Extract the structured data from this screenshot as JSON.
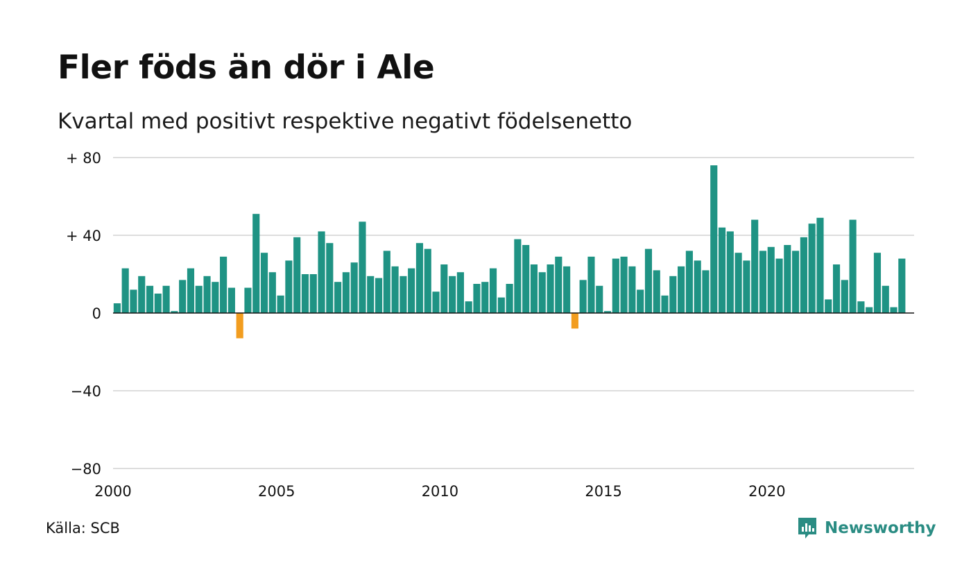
{
  "title": "Fler föds än dör i Ale",
  "subtitle": "Kvartal med positivt respektive negativt födelsenetto",
  "source": "Källa: SCB",
  "brand": {
    "name": "Newsworthy",
    "icon": "newsworthy-logo-icon",
    "color": "#2a8c83"
  },
  "colors": {
    "positive": "#1f9384",
    "negative": "#f29d1f",
    "grid": "#dddddd",
    "zero_line": "#111111"
  },
  "chart_data": {
    "type": "bar",
    "title": "Fler föds än dör i Ale",
    "subtitle": "Kvartal med positivt respektive negativt födelsenetto",
    "xlabel": "",
    "ylabel": "",
    "ylim": [
      -80,
      80
    ],
    "yticks": [
      80,
      40,
      0,
      -40,
      -80
    ],
    "ytick_labels": [
      "+ 80",
      "+ 40",
      "0",
      "−40",
      "−80"
    ],
    "xlim": [
      2000,
      2024.5
    ],
    "xticks": [
      2000,
      2005,
      2010,
      2015,
      2020
    ],
    "xtick_labels": [
      "2000",
      "2005",
      "2010",
      "2015",
      "2020"
    ],
    "grid": true,
    "period": "quarter",
    "start": "2000 Q1",
    "values": [
      5,
      23,
      12,
      19,
      14,
      10,
      14,
      1,
      17,
      23,
      14,
      19,
      16,
      29,
      13,
      -13,
      13,
      51,
      31,
      21,
      9,
      27,
      39,
      20,
      20,
      42,
      36,
      16,
      21,
      26,
      47,
      19,
      18,
      32,
      24,
      19,
      23,
      36,
      33,
      11,
      25,
      19,
      21,
      6,
      15,
      16,
      23,
      8,
      15,
      38,
      35,
      25,
      21,
      25,
      29,
      24,
      -8,
      17,
      29,
      14,
      1,
      28,
      29,
      24,
      12,
      33,
      22,
      9,
      19,
      24,
      32,
      27,
      22,
      76,
      44,
      42,
      31,
      27,
      48,
      32,
      34,
      28,
      35,
      32,
      39,
      46,
      49,
      7,
      25,
      17,
      48,
      6,
      3,
      31,
      14,
      3,
      28
    ]
  }
}
